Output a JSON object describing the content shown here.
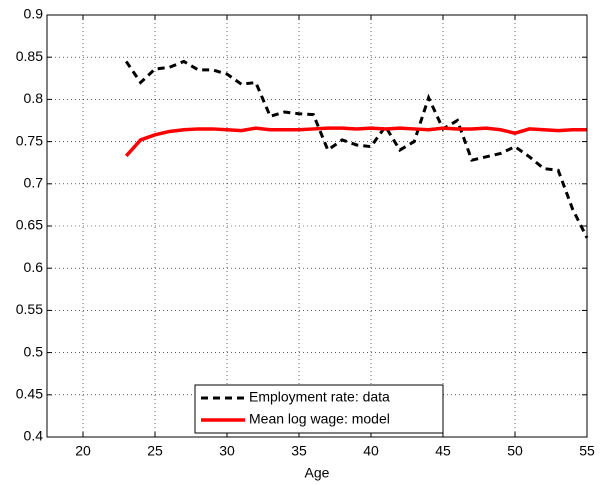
{
  "chart_data": {
    "type": "line",
    "x_label": "Age",
    "x": [
      23,
      24,
      25,
      26,
      27,
      28,
      29,
      30,
      31,
      32,
      33,
      34,
      35,
      36,
      37,
      38,
      39,
      40,
      41,
      42,
      43,
      44,
      45,
      46,
      47,
      48,
      49,
      50,
      51,
      52,
      53,
      54,
      55
    ],
    "series": [
      {
        "name": "Employment rate: data",
        "color": "#000000",
        "dash": true,
        "values": [
          0.845,
          0.82,
          0.836,
          0.838,
          0.845,
          0.835,
          0.835,
          0.83,
          0.818,
          0.82,
          0.78,
          0.785,
          0.783,
          0.782,
          0.74,
          0.752,
          0.746,
          0.744,
          0.768,
          0.74,
          0.75,
          0.802,
          0.765,
          0.775,
          0.728,
          0.732,
          0.736,
          0.744,
          0.732,
          0.718,
          0.716,
          0.67,
          0.636
        ]
      },
      {
        "name": "Mean log wage: model",
        "color": "#ff0000",
        "dash": false,
        "values": [
          0.733,
          0.752,
          0.758,
          0.762,
          0.764,
          0.765,
          0.765,
          0.764,
          0.763,
          0.766,
          0.764,
          0.764,
          0.764,
          0.765,
          0.766,
          0.766,
          0.765,
          0.766,
          0.765,
          0.766,
          0.765,
          0.764,
          0.766,
          0.765,
          0.765,
          0.766,
          0.764,
          0.76,
          0.765,
          0.764,
          0.763,
          0.764,
          0.764
        ]
      }
    ],
    "xlim": [
      17.5,
      55
    ],
    "xticks": [
      20,
      25,
      30,
      35,
      40,
      45,
      50,
      55
    ],
    "ylim": [
      0.4,
      0.9
    ],
    "yticks": [
      0.4,
      0.45,
      0.5,
      0.55,
      0.6,
      0.65,
      0.7,
      0.75,
      0.8,
      0.85,
      0.9
    ],
    "grid": true,
    "legend": "bottom"
  }
}
